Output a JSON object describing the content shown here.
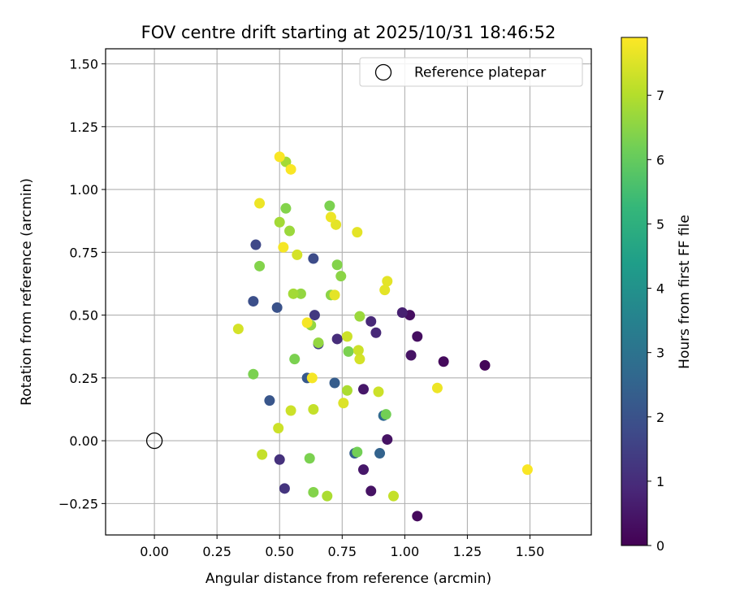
{
  "chart_data": {
    "type": "scatter",
    "title": "FOV centre drift starting at 2025/10/31 18:46:52",
    "xlabel": "Angular distance from reference (arcmin)",
    "ylabel": "Rotation from reference (arcmin)",
    "xlim": [
      -0.195,
      1.745
    ],
    "ylim": [
      -0.375,
      1.56
    ],
    "xticks": [
      0.0,
      0.25,
      0.5,
      0.75,
      1.0,
      1.25,
      1.5
    ],
    "xtick_labels": [
      "0.00",
      "0.25",
      "0.50",
      "0.75",
      "1.00",
      "1.25",
      "1.50"
    ],
    "yticks": [
      -0.25,
      0.0,
      0.25,
      0.5,
      0.75,
      1.0,
      1.25,
      1.5
    ],
    "ytick_labels": [
      "−0.25",
      "0.00",
      "0.25",
      "0.50",
      "0.75",
      "1.00",
      "1.25",
      "1.50"
    ],
    "grid": true,
    "legend": {
      "position": "top-right",
      "entries": [
        "Reference platepar"
      ]
    },
    "reference_point": {
      "x": 0.0,
      "y": 0.0,
      "label": "Reference platepar",
      "marker": "open-circle"
    },
    "colorbar": {
      "label": "Hours from first FF file",
      "range": [
        0,
        7.9
      ],
      "ticks": [
        0,
        1,
        2,
        3,
        4,
        5,
        6,
        7
      ],
      "tick_labels": [
        "0",
        "1",
        "2",
        "3",
        "4",
        "5",
        "6",
        "7"
      ],
      "colormap": "viridis"
    },
    "colormap_stops": [
      "#440154",
      "#482878",
      "#3e4a89",
      "#31688e",
      "#26828e",
      "#1f9e89",
      "#35b779",
      "#6ece58",
      "#b5de2b",
      "#fde725"
    ],
    "points": [
      {
        "x": 1.32,
        "y": 0.3,
        "t": 0.1
      },
      {
        "x": 1.155,
        "y": 0.315,
        "t": 0.2
      },
      {
        "x": 1.05,
        "y": -0.3,
        "t": 0.2
      },
      {
        "x": 1.05,
        "y": 0.415,
        "t": 0.3
      },
      {
        "x": 1.02,
        "y": 0.5,
        "t": 0.3
      },
      {
        "x": 1.025,
        "y": 0.34,
        "t": 0.4
      },
      {
        "x": 0.93,
        "y": 0.005,
        "t": 0.4
      },
      {
        "x": 0.865,
        "y": -0.2,
        "t": 0.4
      },
      {
        "x": 0.835,
        "y": -0.115,
        "t": 0.5
      },
      {
        "x": 0.835,
        "y": 0.205,
        "t": 0.5
      },
      {
        "x": 0.99,
        "y": 0.51,
        "t": 0.7
      },
      {
        "x": 0.885,
        "y": 0.43,
        "t": 0.9
      },
      {
        "x": 0.865,
        "y": 0.475,
        "t": 0.9
      },
      {
        "x": 0.73,
        "y": 0.405,
        "t": 1.0
      },
      {
        "x": 0.5,
        "y": -0.075,
        "t": 1.1
      },
      {
        "x": 0.52,
        "y": -0.19,
        "t": 1.2
      },
      {
        "x": 0.64,
        "y": 0.5,
        "t": 1.3
      },
      {
        "x": 0.655,
        "y": 0.385,
        "t": 1.5
      },
      {
        "x": 0.405,
        "y": 0.78,
        "t": 1.7
      },
      {
        "x": 0.635,
        "y": 0.725,
        "t": 1.8
      },
      {
        "x": 0.395,
        "y": 0.555,
        "t": 1.9
      },
      {
        "x": 0.49,
        "y": 0.53,
        "t": 2.0
      },
      {
        "x": 0.46,
        "y": 0.16,
        "t": 2.1
      },
      {
        "x": 0.61,
        "y": 0.25,
        "t": 2.2
      },
      {
        "x": 0.72,
        "y": 0.23,
        "t": 2.3
      },
      {
        "x": 0.8,
        "y": -0.05,
        "t": 2.4
      },
      {
        "x": 0.9,
        "y": -0.05,
        "t": 2.5
      },
      {
        "x": 0.915,
        "y": 0.1,
        "t": 2.7
      },
      {
        "x": 0.81,
        "y": -0.045,
        "t": 6.2
      },
      {
        "x": 0.925,
        "y": 0.105,
        "t": 6.2
      },
      {
        "x": 0.7,
        "y": 0.935,
        "t": 6.3
      },
      {
        "x": 0.525,
        "y": 0.925,
        "t": 6.4
      },
      {
        "x": 0.395,
        "y": 0.265,
        "t": 6.3
      },
      {
        "x": 0.42,
        "y": 0.695,
        "t": 6.4
      },
      {
        "x": 0.56,
        "y": 0.325,
        "t": 6.3
      },
      {
        "x": 0.62,
        "y": -0.07,
        "t": 6.3
      },
      {
        "x": 0.635,
        "y": -0.205,
        "t": 6.4
      },
      {
        "x": 0.775,
        "y": 0.355,
        "t": 6.3
      },
      {
        "x": 0.745,
        "y": 0.655,
        "t": 6.5
      },
      {
        "x": 0.73,
        "y": 0.7,
        "t": 6.4
      },
      {
        "x": 0.705,
        "y": 0.58,
        "t": 6.5
      },
      {
        "x": 0.655,
        "y": 0.39,
        "t": 6.6
      },
      {
        "x": 0.625,
        "y": 0.46,
        "t": 6.6
      },
      {
        "x": 0.585,
        "y": 0.585,
        "t": 6.6
      },
      {
        "x": 0.54,
        "y": 0.835,
        "t": 6.7
      },
      {
        "x": 0.5,
        "y": 0.87,
        "t": 6.8
      },
      {
        "x": 0.525,
        "y": 1.11,
        "t": 6.8
      },
      {
        "x": 0.555,
        "y": 0.585,
        "t": 6.8
      },
      {
        "x": 0.82,
        "y": 0.495,
        "t": 6.7
      },
      {
        "x": 0.69,
        "y": -0.22,
        "t": 6.9
      },
      {
        "x": 0.77,
        "y": 0.2,
        "t": 6.9
      },
      {
        "x": 0.955,
        "y": -0.22,
        "t": 7.2
      },
      {
        "x": 0.43,
        "y": -0.055,
        "t": 7.2
      },
      {
        "x": 0.495,
        "y": 0.05,
        "t": 7.3
      },
      {
        "x": 0.545,
        "y": 0.12,
        "t": 7.3
      },
      {
        "x": 0.635,
        "y": 0.125,
        "t": 7.2
      },
      {
        "x": 0.895,
        "y": 0.195,
        "t": 7.3
      },
      {
        "x": 0.82,
        "y": 0.325,
        "t": 7.4
      },
      {
        "x": 0.815,
        "y": 0.36,
        "t": 7.3
      },
      {
        "x": 0.77,
        "y": 0.415,
        "t": 7.3
      },
      {
        "x": 0.57,
        "y": 0.74,
        "t": 7.4
      },
      {
        "x": 0.72,
        "y": 0.58,
        "t": 7.6
      },
      {
        "x": 0.725,
        "y": 0.86,
        "t": 7.6
      },
      {
        "x": 0.81,
        "y": 0.83,
        "t": 7.6
      },
      {
        "x": 0.92,
        "y": 0.6,
        "t": 7.6
      },
      {
        "x": 0.93,
        "y": 0.635,
        "t": 7.6
      },
      {
        "x": 0.755,
        "y": 0.15,
        "t": 7.5
      },
      {
        "x": 0.335,
        "y": 0.445,
        "t": 7.4
      },
      {
        "x": 0.42,
        "y": 0.945,
        "t": 7.7
      },
      {
        "x": 0.705,
        "y": 0.89,
        "t": 7.7
      },
      {
        "x": 0.61,
        "y": 0.47,
        "t": 7.8
      },
      {
        "x": 0.63,
        "y": 0.25,
        "t": 7.8
      },
      {
        "x": 0.515,
        "y": 0.77,
        "t": 7.8
      },
      {
        "x": 0.5,
        "y": 1.13,
        "t": 7.85
      },
      {
        "x": 0.545,
        "y": 1.08,
        "t": 7.85
      },
      {
        "x": 1.13,
        "y": 0.21,
        "t": 7.7
      },
      {
        "x": 1.49,
        "y": -0.115,
        "t": 7.85
      }
    ]
  }
}
